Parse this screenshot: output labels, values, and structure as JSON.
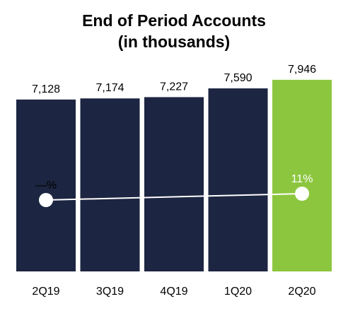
{
  "chart_data": {
    "type": "bar",
    "title_line1": "End of Period Accounts",
    "title_line2": "(in thousands)",
    "categories": [
      "2Q19",
      "3Q19",
      "4Q19",
      "1Q20",
      "2Q20"
    ],
    "values": [
      7128,
      7174,
      7227,
      7590,
      7946
    ],
    "value_labels": [
      "7,128",
      "7,174",
      "7,227",
      "7,590",
      "7,946"
    ],
    "ylim": [
      0,
      8500
    ],
    "bar_colors": [
      "#1c2541",
      "#1c2541",
      "#1c2541",
      "#1c2541",
      "#8cc63f"
    ],
    "growth_line": {
      "points": [
        {
          "category": "2Q19",
          "label": "—%",
          "value": 0
        },
        {
          "category": "2Q20",
          "label": "11%",
          "value": 11
        }
      ],
      "color": "#ffffff"
    },
    "grid": false,
    "legend": "none"
  }
}
